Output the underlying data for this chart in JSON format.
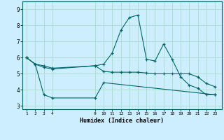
{
  "xlabel": "Humidex (Indice chaleur)",
  "bg_color": "#cceeff",
  "grid_color": "#b0ddd0",
  "line_color": "#006666",
  "series1_x": [
    1,
    2,
    3,
    4,
    9,
    10,
    11,
    12,
    13,
    14,
    15,
    16,
    17,
    18,
    19,
    20,
    21,
    22,
    23
  ],
  "series1_y": [
    6.0,
    5.6,
    5.4,
    5.3,
    5.5,
    5.6,
    6.3,
    7.7,
    8.5,
    8.65,
    5.9,
    5.8,
    6.85,
    5.9,
    4.8,
    4.3,
    4.1,
    3.7,
    3.7
  ],
  "series2_x": [
    1,
    2,
    3,
    4,
    9,
    10,
    11,
    12,
    13,
    14,
    15,
    16,
    17,
    18,
    19,
    20,
    21,
    22,
    23
  ],
  "series2_y": [
    6.0,
    5.6,
    5.5,
    5.35,
    5.5,
    5.15,
    5.1,
    5.1,
    5.1,
    5.1,
    5.05,
    5.0,
    5.0,
    5.0,
    5.0,
    5.0,
    4.8,
    4.4,
    4.2
  ],
  "series3_x": [
    1,
    2,
    3,
    4,
    9,
    10,
    23
  ],
  "series3_y": [
    6.0,
    5.6,
    3.7,
    3.5,
    3.5,
    4.45,
    3.7
  ],
  "xticks": [
    1,
    2,
    3,
    4,
    9,
    10,
    11,
    12,
    13,
    14,
    15,
    16,
    17,
    18,
    19,
    20,
    21,
    22,
    23
  ],
  "yticks": [
    3,
    4,
    5,
    6,
    7,
    8,
    9
  ],
  "xlim": [
    0.5,
    23.8
  ],
  "ylim": [
    2.8,
    9.5
  ]
}
